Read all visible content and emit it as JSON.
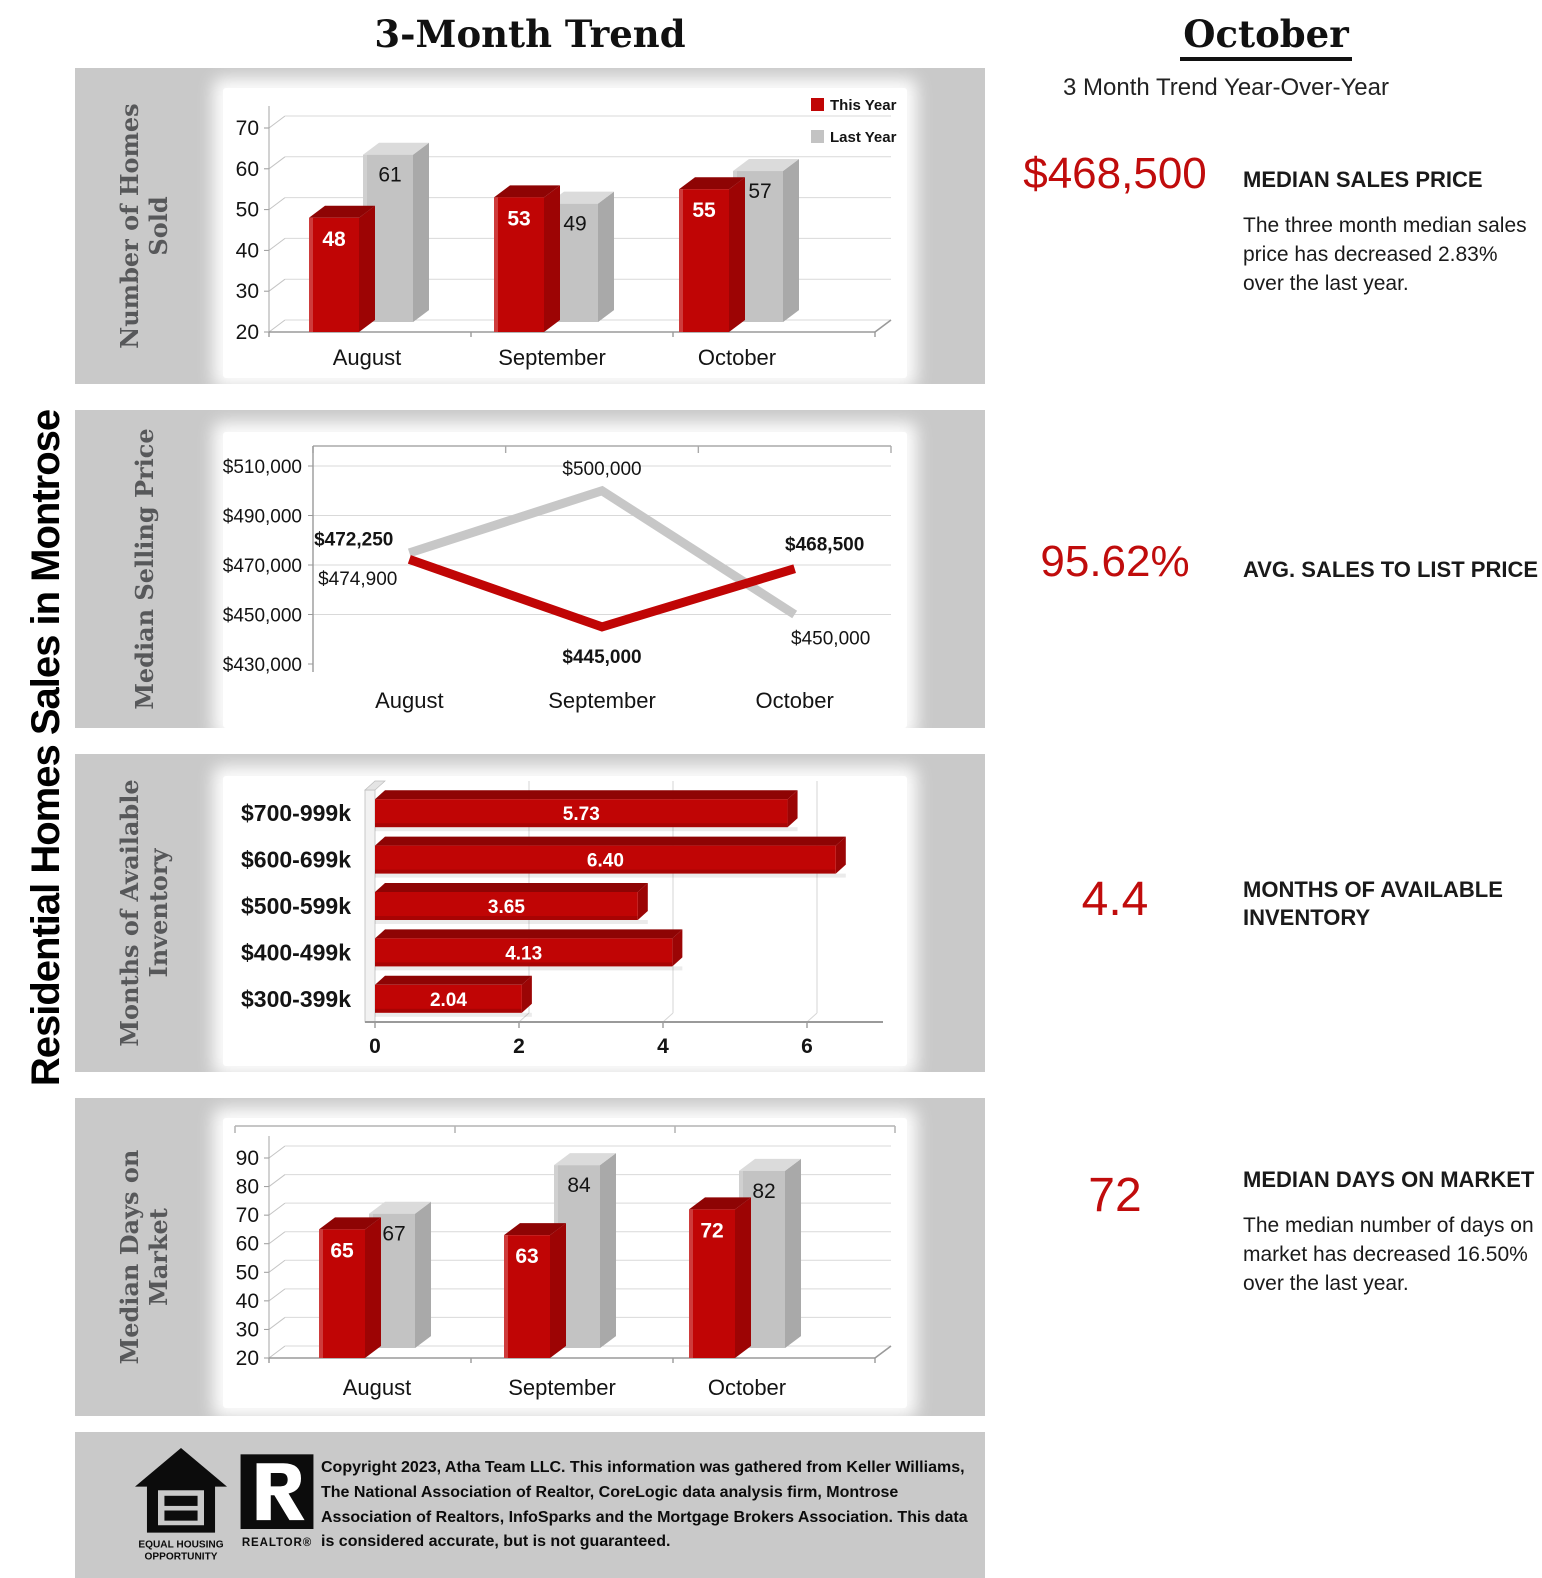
{
  "page": {
    "left_title": "Residential Homes Sales in Montrose",
    "main_title": "3-Month Trend",
    "right_title": "October",
    "right_subtitle": "3 Month Trend Year-Over-Year"
  },
  "colors": {
    "this_year": "#C00505",
    "this_year_top": "#8E0404",
    "this_year_side": "#9D0404",
    "last_year": "#C3C3C3",
    "last_year_top": "#DBDBDB",
    "last_year_side": "#A9A9A9",
    "line_last_year": "#C7C7C7",
    "accent_text": "#C00C0C",
    "panel_bg": "#C9C9C9",
    "grid": "#D9D9D9"
  },
  "stats": [
    {
      "value": "$468,500",
      "label": "MEDIAN SALES PRICE",
      "description": "The three month median sales price has decreased 2.83% over the last year."
    },
    {
      "value": "95.62%",
      "label": "AVG. SALES TO LIST PRICE",
      "description": ""
    },
    {
      "value": "4.4",
      "label": "MONTHS OF AVAILABLE INVENTORY",
      "description": ""
    },
    {
      "value": "72",
      "label": "MEDIAN DAYS ON MARKET",
      "description": "The median number of days on market has decreased 16.50% over the last year."
    }
  ],
  "footer": {
    "copyright": "Copyright 2023, Atha Team LLC. This information was gathered from Keller Williams, The National Association of Realtor, CoreLogic data analysis firm, Montrose Association of Realtors, InfoSparks and the Mortgage Brokers Association.  This data is considered accurate, but is not guaranteed.",
    "eho_line1": "EQUAL HOUSING",
    "eho_line2": "OPPORTUNITY",
    "realtor_label": "REALTOR®"
  },
  "chart_data": [
    {
      "id": "homes_sold",
      "type": "bar",
      "panel_label": "Number of Homes Sold",
      "categories": [
        "August",
        "September",
        "October"
      ],
      "series": [
        {
          "name": "This Year",
          "values": [
            48,
            53,
            55
          ]
        },
        {
          "name": "Last Year",
          "values": [
            61,
            49,
            57
          ]
        }
      ],
      "ylim": [
        20,
        70
      ],
      "ystep": 10,
      "legend": true,
      "legend_position": "top-right",
      "grid": true
    },
    {
      "id": "median_selling_price",
      "type": "line",
      "panel_label": "Median Selling Price",
      "categories": [
        "August",
        "September",
        "October"
      ],
      "series": [
        {
          "name": "This Year",
          "values": [
            472250,
            445000,
            468500
          ],
          "labels": [
            "$472,250",
            "$445,000",
            "$468,500"
          ],
          "label_pos": [
            "above-left",
            "below",
            "above-right"
          ],
          "bold_labels": true
        },
        {
          "name": "Last Year",
          "values": [
            474900,
            500000,
            450000
          ],
          "labels": [
            "$474,900",
            "$500,000",
            "$450,000"
          ],
          "label_pos": [
            "below-left",
            "above",
            "below-right"
          ],
          "bold_labels": false
        }
      ],
      "ylim": [
        430000,
        510000
      ],
      "ystep": 20000,
      "ytick_labels": [
        "$430,000",
        "$450,000",
        "$470,000",
        "$490,000",
        "$510,000"
      ],
      "grid": true
    },
    {
      "id": "months_inventory",
      "type": "hbar",
      "panel_label": "Months of Available Inventory",
      "categories": [
        "$700-999k",
        "$600-699k",
        "$500-599k",
        "$400-499k",
        "$300-399k"
      ],
      "values": [
        5.73,
        6.4,
        3.65,
        4.13,
        2.04
      ],
      "value_labels": [
        "5.73",
        "6.40",
        "3.65",
        "4.13",
        "2.04"
      ],
      "xlim": [
        0,
        7
      ],
      "xticks": [
        0,
        2,
        4,
        6
      ],
      "grid": true
    },
    {
      "id": "days_on_market",
      "type": "bar",
      "panel_label": "Median Days on Market",
      "categories": [
        "August",
        "September",
        "October"
      ],
      "series": [
        {
          "name": "This Year",
          "values": [
            65,
            63,
            72
          ]
        },
        {
          "name": "Last Year",
          "values": [
            67,
            84,
            82
          ]
        }
      ],
      "ylim": [
        20,
        90
      ],
      "ystep": 10,
      "legend": false,
      "top_axis": true,
      "grid": true
    }
  ]
}
